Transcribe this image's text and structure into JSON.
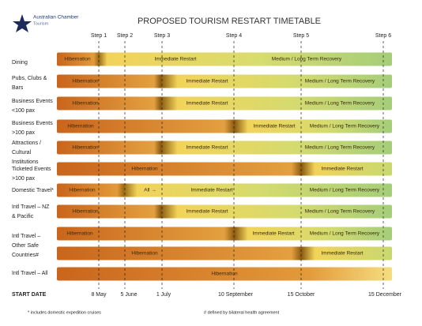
{
  "logo": {
    "line1": "Australian Chamber",
    "line2": "Tourism"
  },
  "title": "PROPOSED TOURISM RESTART TIMETABLE",
  "steps": [
    {
      "label": "Step 1",
      "date": "8 May"
    },
    {
      "label": "Step 2",
      "date": "5 June"
    },
    {
      "label": "Step 3",
      "date": "1 July"
    },
    {
      "label": "Step 4",
      "date": "10 September"
    },
    {
      "label": "Step 5",
      "date": "15 October"
    },
    {
      "label": "Step 6",
      "date": "15 December"
    }
  ],
  "start_date_label": "START DATE",
  "rows": [
    {
      "label": [
        "Dining"
      ],
      "bars": [
        [
          "Hibernation",
          "Immediate Restart",
          "Medium / Long Term Recovery"
        ]
      ]
    },
    {
      "label": [
        "Pubs, Clubs &",
        "Bars"
      ],
      "bars": [
        [
          "Hibernation",
          "Immediate Restart",
          "Medium / Long Term Recovery"
        ]
      ]
    },
    {
      "label": [
        "Business Events",
        "<100 pax"
      ],
      "bars": [
        [
          "Hibernation",
          "Immediate Restart",
          "Medium / Long Term Recovery"
        ]
      ]
    },
    {
      "label": [
        "Business Events",
        ">100 pax"
      ],
      "bars": [
        [
          "Hibernation",
          "Immediate Restart",
          "Medium / Long Term Recovery"
        ]
      ]
    },
    {
      "label": [
        "Attractions /",
        "Cultural",
        "Institutions"
      ],
      "bars": [
        [
          "Hibernation",
          "Immediate Restart",
          "Medium / Long Term Recovery"
        ]
      ]
    },
    {
      "label": [
        "Ticketed Events",
        ">100 pax"
      ],
      "bars": [
        [
          "Hibernation",
          "Immediate Restart"
        ]
      ]
    },
    {
      "label": [
        "Domestic Travel*"
      ],
      "bars": [
        [
          "Hibernation",
          "All →",
          "Immediate Restart",
          "Medium / Long Term Recovery"
        ]
      ]
    },
    {
      "label": [
        "Intl Travel – NZ",
        "& Pacific"
      ],
      "bars": [
        [
          "Hibernation",
          "Immediate Restart",
          "Medium / Long Term Recovery"
        ]
      ]
    },
    {
      "label": [
        "Intl Travel –",
        "Other Safe",
        "Countries#"
      ],
      "bars": [
        [
          "Hibernation",
          "Immediate Restart",
          "Medium / Long Term Recovery"
        ],
        [
          "Hibernation",
          "Immediate Restart"
        ]
      ]
    },
    {
      "label": [
        "Intl Travel – All"
      ],
      "bars": [
        [
          "Hibernation"
        ]
      ]
    }
  ],
  "footnotes": [
    "*    includes domestic expedition cruises",
    "#    defined by bilateral health agreement"
  ]
}
